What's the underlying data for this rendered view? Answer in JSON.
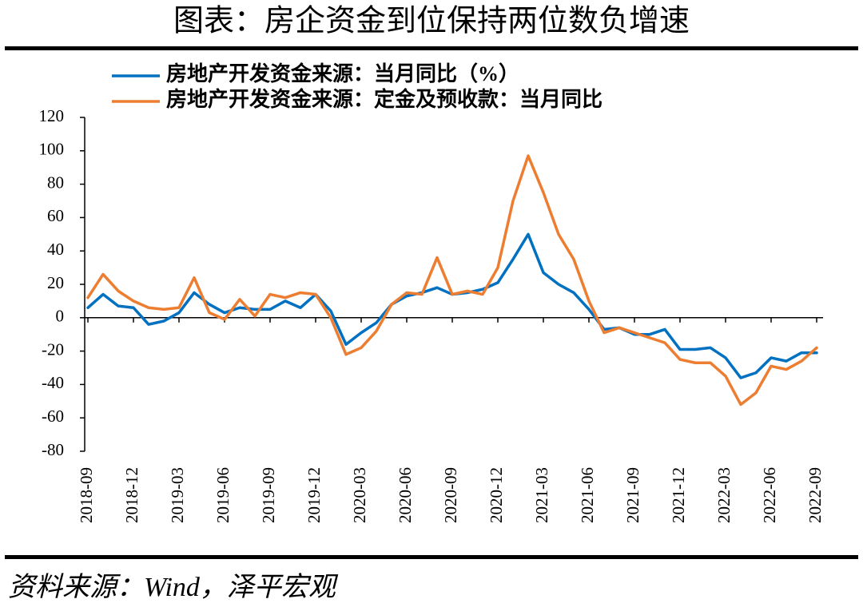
{
  "chart_data": {
    "type": "line",
    "title": "图表：房企资金到位保持两位数负增速",
    "source": "资料来源：Wind，泽平宏观",
    "categories": [
      "2018-09",
      null,
      null,
      "2018-12",
      null,
      null,
      "2019-03",
      null,
      null,
      "2019-06",
      null,
      null,
      "2019-09",
      null,
      null,
      "2019-12",
      null,
      null,
      "2020-03",
      null,
      null,
      "2020-06",
      null,
      null,
      "2020-09",
      null,
      null,
      "2020-12",
      null,
      null,
      "2021-03",
      null,
      null,
      "2021-06",
      null,
      null,
      "2021-09",
      null,
      null,
      "2021-12",
      null,
      null,
      "2022-03",
      null,
      null,
      "2022-06",
      null,
      null,
      "2022-09"
    ],
    "series": [
      {
        "name": "房地产开发资金来源：当月同比（%）",
        "color": "#0070c0",
        "values": [
          6,
          14,
          7,
          6,
          -4,
          -2,
          3,
          15,
          8,
          3,
          6,
          5,
          5,
          10,
          6,
          14,
          4,
          -16,
          -9,
          -3,
          8,
          13,
          15,
          18,
          14,
          15,
          17,
          21,
          35,
          50,
          27,
          20,
          15,
          5,
          -7,
          -6,
          -10,
          -10,
          -7,
          -19,
          -19,
          -18,
          -24,
          -36,
          -33,
          -24,
          -26,
          -21,
          -21
        ]
      },
      {
        "name": "房地产开发资金来源：定金及预收款：当月同比",
        "color": "#ed7d31",
        "values": [
          12,
          26,
          16,
          10,
          6,
          5,
          6,
          24,
          3,
          -1,
          11,
          1,
          14,
          12,
          15,
          14,
          0,
          -22,
          -18,
          -8,
          8,
          15,
          14,
          36,
          14,
          16,
          14,
          30,
          70,
          97,
          75,
          50,
          35,
          10,
          -9,
          -6,
          -9,
          -12,
          -15,
          -25,
          -27,
          -27,
          -35,
          -52,
          -45,
          -29,
          -31,
          -26,
          -18
        ]
      }
    ],
    "ylim": [
      -80,
      120
    ],
    "yticks": [
      -80,
      -60,
      -40,
      -20,
      0,
      20,
      40,
      60,
      80,
      100,
      120
    ]
  }
}
